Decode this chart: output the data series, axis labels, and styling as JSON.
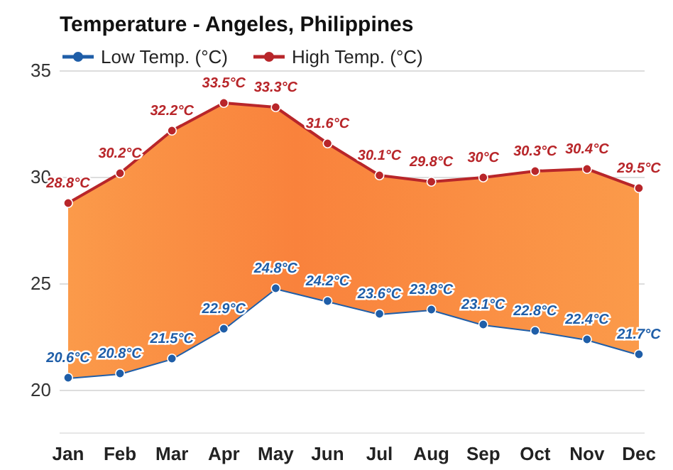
{
  "chart_data": {
    "type": "line",
    "title": "Temperature - Angeles, Philippines",
    "categories": [
      "Jan",
      "Feb",
      "Mar",
      "Apr",
      "May",
      "Jun",
      "Jul",
      "Aug",
      "Sep",
      "Oct",
      "Nov",
      "Dec"
    ],
    "series": [
      {
        "name": "Low Temp. (°C)",
        "color": "#1f5ea8",
        "values": [
          20.6,
          20.8,
          21.5,
          22.9,
          24.8,
          24.2,
          23.6,
          23.8,
          23.1,
          22.8,
          22.4,
          21.7
        ],
        "value_labels": [
          "20.6°C",
          "20.8°C",
          "21.5°C",
          "22.9°C",
          "24.8°C",
          "24.2°C",
          "23.6°C",
          "23.8°C",
          "23.1°C",
          "22.8°C",
          "22.4°C",
          "21.7°C"
        ]
      },
      {
        "name": "High Temp. (°C)",
        "type": "area",
        "color": "#b8262a",
        "values": [
          28.8,
          30.2,
          32.2,
          33.5,
          33.3,
          31.6,
          30.1,
          29.8,
          30,
          30.3,
          30.4,
          29.5
        ],
        "value_labels": [
          "28.8°C",
          "30.2°C",
          "32.2°C",
          "33.5°C",
          "33.3°C",
          "31.6°C",
          "30.1°C",
          "29.8°C",
          "30°C",
          "30.3°C",
          "30.4°C",
          "29.5°C"
        ]
      }
    ],
    "ylim": [
      18,
      35
    ],
    "yticks": [
      20,
      25,
      30,
      35
    ],
    "grid": "y",
    "legend": "top left",
    "marker": "circle"
  }
}
